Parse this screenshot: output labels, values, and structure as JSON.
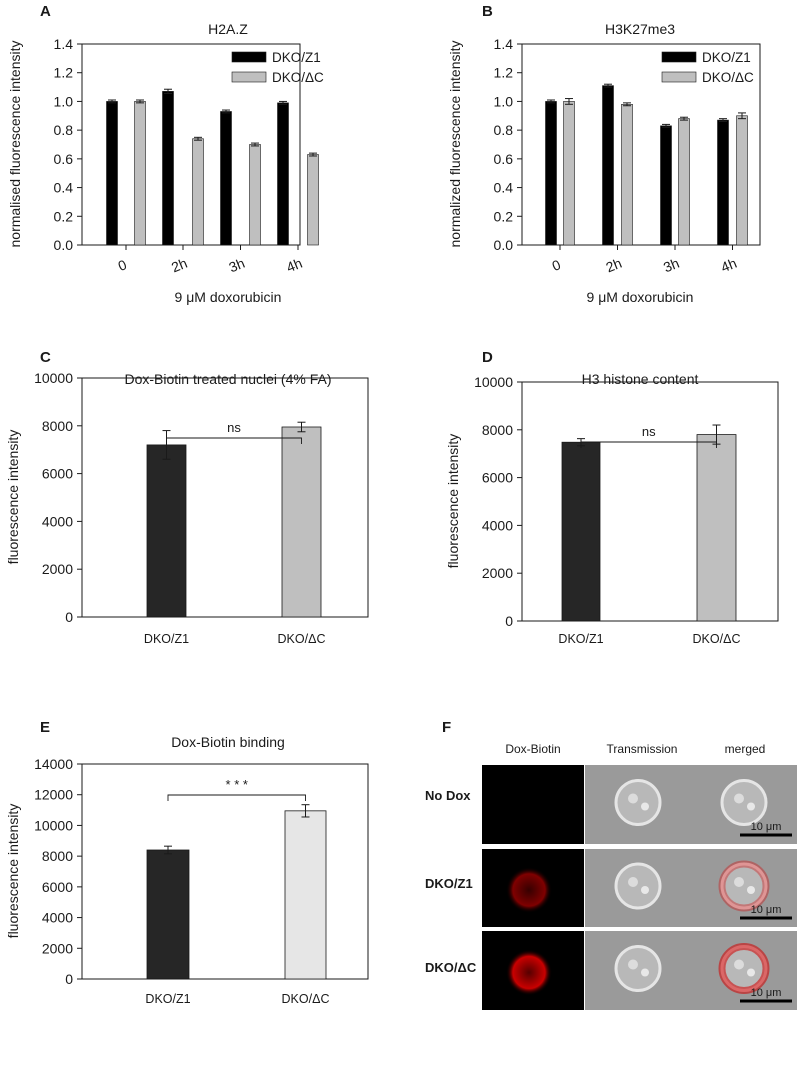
{
  "colors": {
    "dark": "#000000",
    "darkgrey": "#262626",
    "light": "#bfbfbf",
    "lighter": "#d9d9d9",
    "lightest": "#e6e6e6",
    "red": "#d40000"
  },
  "chart_data": [
    {
      "panel": "A",
      "type": "bar",
      "title": "H2A.Z",
      "xlabel": "9 μM doxorubicin",
      "ylabel": "normalised fluorescence intensity",
      "categories": [
        "0",
        "2h",
        "3h",
        "4h"
      ],
      "ylim": [
        0,
        1.4
      ],
      "yticks": [
        "0.0",
        "0.2",
        "0.4",
        "0.6",
        "0.8",
        "1.0",
        "1.2",
        "1.4"
      ],
      "legend_position": "top-right",
      "series": [
        {
          "name": "DKO/Z1",
          "values": [
            1.0,
            1.07,
            0.93,
            0.99
          ],
          "errors": [
            0.01,
            0.015,
            0.01,
            0.01
          ]
        },
        {
          "name": "DKO/ΔC",
          "values": [
            1.0,
            0.74,
            0.7,
            0.63
          ],
          "errors": [
            0.01,
            0.01,
            0.01,
            0.01
          ]
        }
      ]
    },
    {
      "panel": "B",
      "type": "bar",
      "title": "H3K27me3",
      "xlabel": "9 μM doxorubicin",
      "ylabel": "normalized fluorescence intensity",
      "categories": [
        "0",
        "2h",
        "3h",
        "4h"
      ],
      "ylim": [
        0,
        1.4
      ],
      "yticks": [
        "0.0",
        "0.2",
        "0.4",
        "0.6",
        "0.8",
        "1.0",
        "1.2",
        "1.4"
      ],
      "legend_position": "top-right",
      "series": [
        {
          "name": "DKO/Z1",
          "values": [
            1.0,
            1.11,
            0.83,
            0.87
          ],
          "errors": [
            0.01,
            0.01,
            0.01,
            0.01
          ]
        },
        {
          "name": "DKO/ΔC",
          "values": [
            1.0,
            0.98,
            0.88,
            0.9
          ],
          "errors": [
            0.02,
            0.01,
            0.01,
            0.02
          ]
        }
      ]
    },
    {
      "panel": "C",
      "type": "bar",
      "title": "Dox-Biotin treated nuclei (4% FA)",
      "xlabel": "",
      "ylabel": "fluorescence intensity",
      "categories": [
        "DKO/Z1",
        "DKO/ΔC"
      ],
      "ylim": [
        0,
        10000
      ],
      "yticks": [
        "0",
        "2000",
        "4000",
        "6000",
        "8000",
        "10000"
      ],
      "values": [
        7200,
        7950
      ],
      "errors": [
        600,
        200
      ],
      "significance": "ns"
    },
    {
      "panel": "D",
      "type": "bar",
      "title": "H3 histone content",
      "xlabel": "",
      "ylabel": "fluorescence intensity",
      "categories": [
        "DKO/Z1",
        "DKO/ΔC"
      ],
      "ylim": [
        0,
        10000
      ],
      "yticks": [
        "0",
        "2000",
        "4000",
        "6000",
        "8000",
        "10000"
      ],
      "values": [
        7480,
        7800
      ],
      "errors": [
        150,
        400
      ],
      "significance": "ns"
    },
    {
      "panel": "E",
      "type": "bar",
      "title": "Dox-Biotin binding",
      "xlabel": "",
      "ylabel": "fluorescence intensity",
      "categories": [
        "DKO/Z1",
        "DKO/ΔC"
      ],
      "ylim": [
        0,
        14000
      ],
      "yticks": [
        "0",
        "2000",
        "4000",
        "6000",
        "8000",
        "10000",
        "12000",
        "14000"
      ],
      "values": [
        8400,
        10950
      ],
      "errors": [
        250,
        400
      ],
      "significance": "* * *"
    }
  ],
  "panel_f": {
    "letter": "F",
    "columns": [
      "Dox-Biotin",
      "Transmission",
      "merged"
    ],
    "rows": [
      "No Dox",
      "DKO/Z1",
      "DKO/ΔC"
    ],
    "scale_bar": "10 μm"
  }
}
